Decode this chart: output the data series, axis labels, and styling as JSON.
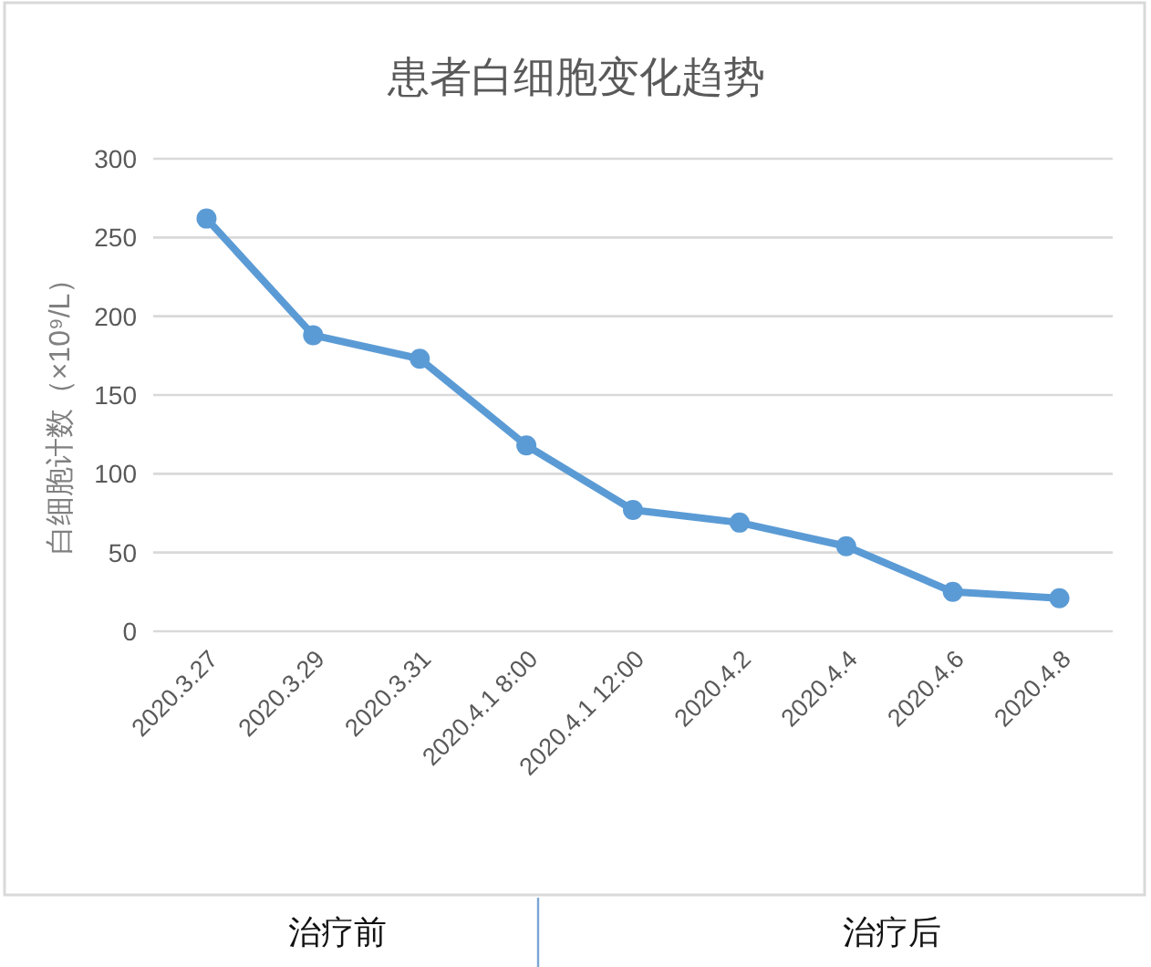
{
  "chart_data": {
    "type": "line",
    "title": "患者白细胞变化趋势",
    "ylabel": "白细胞计数（×10⁹/L）",
    "categories": [
      "2020.3.27",
      "2020.3.29",
      "2020.3.31",
      "2020.4.1 8:00",
      "2020.4.1 12:00",
      "2020.4.2",
      "2020.4.4",
      "2020.4.6",
      "2020.4.8"
    ],
    "series": [
      {
        "color": "#5b9bd5",
        "values": [
          262,
          188,
          173,
          118,
          77,
          69,
          54,
          25,
          21
        ]
      }
    ],
    "ylim": [
      0,
      300
    ],
    "yticks": [
      0,
      50,
      100,
      150,
      200,
      250,
      300
    ],
    "grid": "y",
    "marker": "circle",
    "line_style": "solid",
    "annotations": [
      "治疗前",
      "治疗后"
    ]
  }
}
